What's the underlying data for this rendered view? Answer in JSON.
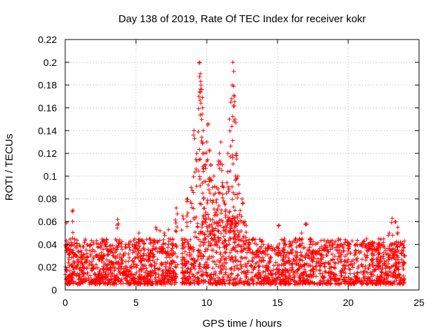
{
  "chart_data": {
    "type": "scatter",
    "title": "Day 138 of 2019, Rate Of TEC Index for receiver kokr",
    "xlabel": "GPS time / hours",
    "ylabel": "ROTI / TECUs",
    "xlim": [
      0,
      25
    ],
    "ylim": [
      0,
      0.22
    ],
    "x_ticks": [
      0,
      5,
      10,
      15,
      20,
      25
    ],
    "x_tick_labels": [
      "0",
      "5",
      "10",
      "15",
      "20",
      "25"
    ],
    "y_ticks": [
      0,
      0.02,
      0.04,
      0.06,
      0.08,
      0.1,
      0.12,
      0.14,
      0.16,
      0.18,
      0.2,
      0.22
    ],
    "y_tick_labels": [
      "0",
      "0.02",
      "0.04",
      "0.06",
      "0.08",
      "0.1",
      "0.12",
      "0.14",
      "0.16",
      "0.18",
      "0.2",
      "0.22"
    ],
    "grid": true,
    "marker": "+",
    "color": "#ff0000",
    "series": [
      {
        "name": "ROTI",
        "x": [
          0.1,
          0.3,
          0.5,
          0.55,
          0.8,
          1.2,
          1.5,
          1.8,
          2.2,
          2.6,
          3.0,
          3.4,
          3.7,
          3.75,
          4.1,
          4.5,
          4.9,
          5.2,
          5.6,
          6.0,
          6.4,
          6.7,
          7.0,
          7.3,
          7.6,
          7.85,
          8.3,
          8.6,
          8.9,
          9.1,
          9.3,
          9.45,
          9.5,
          9.55,
          9.6,
          9.65,
          9.7,
          9.75,
          9.8,
          9.9,
          10.0,
          10.1,
          10.2,
          10.3,
          10.4,
          10.5,
          10.6,
          10.7,
          10.8,
          10.9,
          11.0,
          11.1,
          11.2,
          11.3,
          11.4,
          11.5,
          11.6,
          11.7,
          11.8,
          11.85,
          11.9,
          11.95,
          12.0,
          12.1,
          12.2,
          12.3,
          12.5,
          12.7,
          13.0,
          13.3,
          13.6,
          14.0,
          14.4,
          14.8,
          15.1,
          15.5,
          15.9,
          16.3,
          16.7,
          17.0,
          17.3,
          17.7,
          18.1,
          18.5,
          18.9,
          19.3,
          19.7,
          20.1,
          20.5,
          20.9,
          21.3,
          21.7,
          22.1,
          22.5,
          22.9,
          23.1,
          23.3,
          23.5,
          23.8,
          24.0
        ],
        "y": [
          0.059,
          0.035,
          0.069,
          0.07,
          0.03,
          0.028,
          0.025,
          0.04,
          0.03,
          0.028,
          0.035,
          0.03,
          0.062,
          0.058,
          0.03,
          0.04,
          0.045,
          0.05,
          0.035,
          0.045,
          0.055,
          0.052,
          0.05,
          0.053,
          0.045,
          0.072,
          0.065,
          0.08,
          0.09,
          0.14,
          0.12,
          0.17,
          0.2,
          0.19,
          0.18,
          0.176,
          0.16,
          0.14,
          0.12,
          0.11,
          0.13,
          0.146,
          0.123,
          0.11,
          0.09,
          0.1,
          0.085,
          0.09,
          0.11,
          0.12,
          0.13,
          0.11,
          0.09,
          0.075,
          0.085,
          0.12,
          0.15,
          0.165,
          0.18,
          0.2,
          0.192,
          0.17,
          0.15,
          0.12,
          0.1,
          0.085,
          0.08,
          0.06,
          0.04,
          0.045,
          0.035,
          0.04,
          0.038,
          0.035,
          0.057,
          0.045,
          0.04,
          0.045,
          0.05,
          0.058,
          0.045,
          0.04,
          0.038,
          0.035,
          0.04,
          0.045,
          0.04,
          0.04,
          0.035,
          0.04,
          0.045,
          0.035,
          0.04,
          0.045,
          0.05,
          0.063,
          0.06,
          0.055,
          0.035,
          0.03
        ],
        "dense_band": {
          "x_range": [
            0,
            24
          ],
          "y_min": 0.005,
          "y_max_typical": 0.045,
          "note": "continuous dense cloud of ROTI samples"
        }
      }
    ]
  }
}
